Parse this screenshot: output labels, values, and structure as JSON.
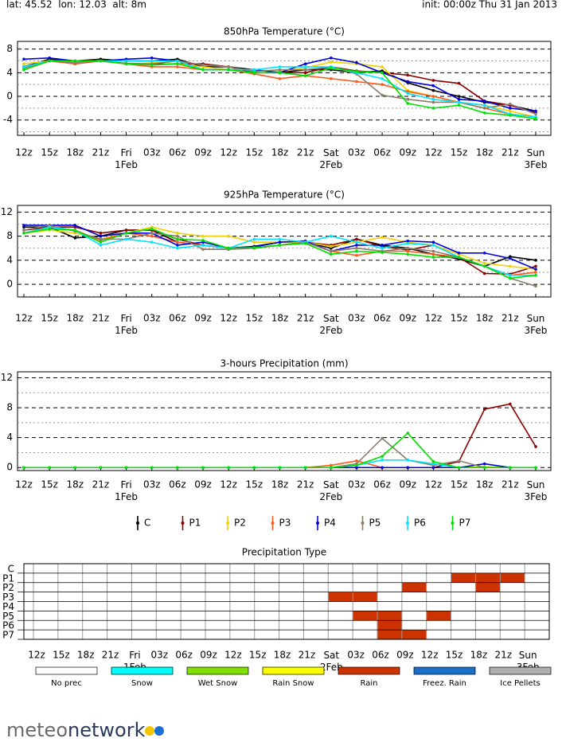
{
  "header": {
    "location": "lat: 45.52  lon: 12.03  alt: 8m",
    "init": "init: 00:00z Thu 31 Jan 2013"
  },
  "chart_data": [
    {
      "type": "line",
      "title": "850hPa Temperature (°C)",
      "categories": [
        "12z",
        "15z",
        "18z",
        "21z",
        "Fri\n1Feb",
        "03z",
        "06z",
        "09z",
        "12z",
        "15z",
        "18z",
        "21z",
        "Sat\n2Feb",
        "03z",
        "06z",
        "09z",
        "12z",
        "15z",
        "18z",
        "21z",
        "Sun\n3Feb"
      ],
      "ylim": [
        -6.6,
        9.3
      ],
      "yticks": [
        -4,
        0,
        4,
        8
      ],
      "minor_yticks": [
        -6,
        -2,
        2,
        6
      ],
      "series": [
        {
          "name": "C",
          "color": "#000000",
          "values": [
            5,
            6.3,
            6,
            6.3,
            6,
            6,
            6.3,
            5,
            5,
            4.5,
            4,
            4.5,
            4.5,
            4,
            4.3,
            2.3,
            1,
            0,
            -1,
            -1.5,
            -2.5
          ]
        },
        {
          "name": "P1",
          "color": "#8b0000",
          "values": [
            5,
            6,
            5.5,
            6,
            5.5,
            5.5,
            5.5,
            5.5,
            5,
            4,
            4,
            4,
            5,
            4.3,
            4,
            3.6,
            2.7,
            2.2,
            -0.8,
            -1.5,
            -2.8
          ]
        },
        {
          "name": "P2",
          "color": "#f0d000",
          "values": [
            5.5,
            6,
            6,
            6,
            6,
            5.8,
            5.5,
            5,
            4.5,
            4.5,
            4.2,
            4.8,
            5.8,
            5.5,
            5,
            1,
            0,
            -1,
            -1.5,
            -2.5,
            -3.5
          ]
        },
        {
          "name": "P3",
          "color": "#ff5a1a",
          "values": [
            4.5,
            6,
            5.5,
            6,
            5.5,
            5,
            5,
            4.5,
            4.5,
            3.8,
            3,
            3.5,
            3,
            2.5,
            2,
            0.8,
            0,
            -1,
            -2,
            -3,
            -3.5
          ]
        },
        {
          "name": "P4",
          "color": "#0000e0",
          "values": [
            6.3,
            6.5,
            6,
            6,
            6.3,
            6.5,
            6,
            4.5,
            4.5,
            4.5,
            4,
            5.5,
            6.5,
            5.7,
            4,
            2.5,
            1.8,
            -0.5,
            -0.8,
            -2,
            -2.5
          ]
        },
        {
          "name": "P5",
          "color": "#8b7d6b",
          "values": [
            4.8,
            6,
            5.7,
            6,
            5.6,
            5.5,
            6,
            5.3,
            5,
            4.2,
            4.5,
            4.5,
            5,
            3.8,
            0.2,
            -0.5,
            -1,
            -1,
            -2,
            -1.3,
            -3
          ]
        },
        {
          "name": "P6",
          "color": "#00e5ff",
          "values": [
            5,
            6,
            6,
            6,
            6,
            6,
            6,
            4.5,
            4.5,
            4.5,
            5,
            5,
            5,
            4,
            3,
            0.5,
            -0.5,
            -1,
            -1.5,
            -3,
            -3.5
          ]
        },
        {
          "name": "P7",
          "color": "#00e000",
          "values": [
            4.5,
            6,
            6,
            6,
            5.5,
            5.3,
            5.5,
            4.5,
            4.5,
            4,
            4,
            3.5,
            4.8,
            4.2,
            4,
            -1.2,
            -2,
            -1.5,
            -2.8,
            -3.2,
            -3.8
          ]
        }
      ]
    },
    {
      "type": "line",
      "title": "925hPa Temperature (°C)",
      "categories": [
        "12z",
        "15z",
        "18z",
        "21z",
        "Fri\n1Feb",
        "03z",
        "06z",
        "09z",
        "12z",
        "15z",
        "18z",
        "21z",
        "Sat\n2Feb",
        "03z",
        "06z",
        "09z",
        "12z",
        "15z",
        "18z",
        "21z",
        "Sun\n3Feb"
      ],
      "ylim": [
        -2.1,
        13.1
      ],
      "yticks": [
        0,
        4,
        8,
        12
      ],
      "minor_yticks": [
        -2,
        2,
        6,
        10
      ],
      "series": [
        {
          "name": "C",
          "color": "#000000",
          "values": [
            9.5,
            9.5,
            7.7,
            8,
            9,
            9,
            7,
            6.5,
            6,
            6.3,
            7,
            7,
            6,
            7.5,
            6.5,
            6,
            5,
            4.2,
            3,
            4.6,
            4
          ]
        },
        {
          "name": "P1",
          "color": "#8b0000",
          "values": [
            9,
            9.5,
            9.5,
            8.5,
            9,
            9,
            7.5,
            6.5,
            6,
            6,
            6.5,
            7,
            6.5,
            7.5,
            6.3,
            5.7,
            6.5,
            4.5,
            1.8,
            1.7,
            3
          ]
        },
        {
          "name": "P2",
          "color": "#f0d000",
          "values": [
            8.5,
            9,
            8.5,
            7.5,
            8.5,
            9.5,
            8.5,
            8,
            8,
            7,
            7,
            7,
            6.3,
            7,
            7.8,
            7,
            6.5,
            5,
            3.5,
            3,
            2.5
          ]
        },
        {
          "name": "P3",
          "color": "#ff5a1a",
          "values": [
            8.5,
            9.5,
            9,
            7.3,
            8.5,
            8,
            7,
            6.5,
            6,
            6,
            6.5,
            7,
            5.5,
            4.8,
            5.5,
            5.5,
            5,
            4.5,
            3,
            1.5,
            2
          ]
        },
        {
          "name": "P4",
          "color": "#0000e0",
          "values": [
            9.8,
            9.8,
            9.8,
            8,
            8.5,
            8.5,
            6.5,
            7,
            6,
            6.2,
            7,
            7.2,
            5.5,
            6.5,
            6.5,
            7.2,
            7,
            5.2,
            5.2,
            4.3,
            2.5
          ]
        },
        {
          "name": "P5",
          "color": "#8b7d6b",
          "values": [
            9,
            9.8,
            8.8,
            7.5,
            7.5,
            8.5,
            8,
            5.8,
            5.8,
            6,
            6.5,
            7,
            5.5,
            6,
            5.5,
            6,
            5.5,
            4.5,
            3,
            1,
            -0.3
          ]
        },
        {
          "name": "P6",
          "color": "#00e5ff",
          "values": [
            8.5,
            9.5,
            9,
            6.5,
            7.5,
            7,
            6,
            6.5,
            6,
            7.5,
            7.5,
            7,
            8,
            7,
            6,
            6.8,
            6.5,
            4.5,
            3,
            1.5,
            1.5
          ]
        },
        {
          "name": "P7",
          "color": "#00e000",
          "values": [
            8.5,
            9.2,
            9,
            7,
            8.5,
            9.2,
            7.5,
            7.3,
            6,
            6.1,
            6.5,
            6.8,
            5,
            5.5,
            5.3,
            5,
            4.5,
            4.5,
            3,
            1,
            1.5
          ]
        }
      ]
    },
    {
      "type": "line",
      "title": "3-hours Precipitation (mm)",
      "categories": [
        "12z",
        "15z",
        "18z",
        "21z",
        "Fri\n1Feb",
        "03z",
        "06z",
        "09z",
        "12z",
        "15z",
        "18z",
        "21z",
        "Sat\n2Feb",
        "03z",
        "06z",
        "09z",
        "12z",
        "15z",
        "18z",
        "21z",
        "Sun\n3Feb"
      ],
      "ylim": [
        -0.4,
        12.8
      ],
      "yticks": [
        0,
        4,
        8,
        12
      ],
      "minor_yticks": [
        2,
        6,
        10
      ],
      "series": [
        {
          "name": "C",
          "color": "#000000",
          "values": [
            0,
            0,
            0,
            0,
            0,
            0,
            0,
            0,
            0,
            0,
            0,
            0,
            0,
            0,
            0,
            0,
            0,
            0,
            0,
            0,
            0
          ]
        },
        {
          "name": "P1",
          "color": "#8b0000",
          "values": [
            0,
            0,
            0,
            0,
            0,
            0,
            0,
            0,
            0,
            0,
            0,
            0,
            0,
            0,
            0,
            0,
            0,
            0.8,
            7.8,
            8.5,
            2.8
          ]
        },
        {
          "name": "P2",
          "color": "#f0d000",
          "values": [
            0,
            0,
            0,
            0,
            0,
            0,
            0,
            0,
            0,
            0,
            0,
            0,
            0,
            0,
            0,
            0,
            0,
            0,
            0.1,
            0,
            0
          ]
        },
        {
          "name": "P3",
          "color": "#ff5a1a",
          "values": [
            0,
            0,
            0,
            0,
            0,
            0,
            0,
            0,
            0,
            0,
            0,
            0,
            0.3,
            0.9,
            0,
            0,
            0,
            0,
            0,
            0,
            0
          ]
        },
        {
          "name": "P4",
          "color": "#0000e0",
          "values": [
            0,
            0,
            0,
            0,
            0,
            0,
            0,
            0,
            0,
            0,
            0,
            0,
            0,
            0,
            0,
            0,
            0,
            0,
            0.5,
            0,
            0
          ]
        },
        {
          "name": "P5",
          "color": "#8b7d6b",
          "values": [
            0,
            0,
            0,
            0,
            0,
            0,
            0,
            0,
            0,
            0,
            0,
            0,
            0,
            0.5,
            3.9,
            1,
            0.3,
            0.9,
            0,
            0,
            0
          ]
        },
        {
          "name": "P6",
          "color": "#00e5ff",
          "values": [
            0,
            0,
            0,
            0,
            0,
            0,
            0,
            0,
            0,
            0,
            0,
            0,
            0,
            0.3,
            1,
            1,
            0.5,
            0,
            0,
            0,
            0
          ]
        },
        {
          "name": "P7",
          "color": "#00e000",
          "values": [
            0,
            0,
            0,
            0,
            0,
            0,
            0,
            0,
            0,
            0,
            0,
            0,
            0,
            0.3,
            1.5,
            4.6,
            0.8,
            0,
            0,
            0,
            0
          ]
        }
      ]
    }
  ],
  "precip_type": {
    "title": "Precipitation Type",
    "categories": [
      "12z",
      "15z",
      "18z",
      "21z",
      "Fri\n1Feb",
      "03z",
      "06z",
      "09z",
      "12z",
      "15z",
      "18z",
      "21z",
      "Sat\n2Feb",
      "03z",
      "06z",
      "09z",
      "12z",
      "15z",
      "18z",
      "21z",
      "Sun\n3Feb"
    ],
    "rows": [
      {
        "name": "C",
        "values": [
          null,
          null,
          null,
          null,
          null,
          null,
          null,
          null,
          null,
          null,
          null,
          null,
          null,
          null,
          null,
          null,
          null,
          null,
          null,
          null,
          null
        ]
      },
      {
        "name": "P1",
        "values": [
          null,
          null,
          null,
          null,
          null,
          null,
          null,
          null,
          null,
          null,
          null,
          null,
          null,
          null,
          null,
          null,
          null,
          "Rain",
          "Rain",
          "Rain",
          null
        ]
      },
      {
        "name": "P2",
        "values": [
          null,
          null,
          null,
          null,
          null,
          null,
          null,
          null,
          null,
          null,
          null,
          null,
          null,
          null,
          null,
          "Rain",
          null,
          null,
          "Rain",
          null,
          null
        ]
      },
      {
        "name": "P3",
        "values": [
          null,
          null,
          null,
          null,
          null,
          null,
          null,
          null,
          null,
          null,
          null,
          null,
          "Rain",
          "Rain",
          null,
          null,
          null,
          null,
          null,
          null,
          null
        ]
      },
      {
        "name": "P4",
        "values": [
          null,
          null,
          null,
          null,
          null,
          null,
          null,
          null,
          null,
          null,
          null,
          null,
          null,
          null,
          null,
          null,
          null,
          null,
          null,
          null,
          null
        ]
      },
      {
        "name": "P5",
        "values": [
          null,
          null,
          null,
          null,
          null,
          null,
          null,
          null,
          null,
          null,
          null,
          null,
          null,
          "Rain",
          "Rain",
          null,
          "Rain",
          null,
          null,
          null,
          null
        ]
      },
      {
        "name": "P6",
        "values": [
          null,
          null,
          null,
          null,
          null,
          null,
          null,
          null,
          null,
          null,
          null,
          null,
          null,
          null,
          "Rain",
          null,
          null,
          null,
          null,
          null,
          null
        ]
      },
      {
        "name": "P7",
        "values": [
          null,
          null,
          null,
          null,
          null,
          null,
          null,
          null,
          null,
          null,
          null,
          null,
          null,
          null,
          "Rain",
          "Rain",
          null,
          null,
          null,
          null,
          null
        ]
      }
    ],
    "legend": [
      {
        "name": "No prec",
        "color": "#ffffff"
      },
      {
        "name": "Snow",
        "color": "#00ffff"
      },
      {
        "name": "Wet Snow",
        "color": "#80e000"
      },
      {
        "name": "Rain Snow",
        "color": "#ffff00"
      },
      {
        "name": "Rain",
        "color": "#cc3300"
      },
      {
        "name": "Freez. Rain",
        "color": "#1a70c8"
      },
      {
        "name": "Ice Pellets",
        "color": "#b0b0b0"
      }
    ]
  },
  "logo": {
    "part1": "meteo",
    "part2": "network"
  }
}
